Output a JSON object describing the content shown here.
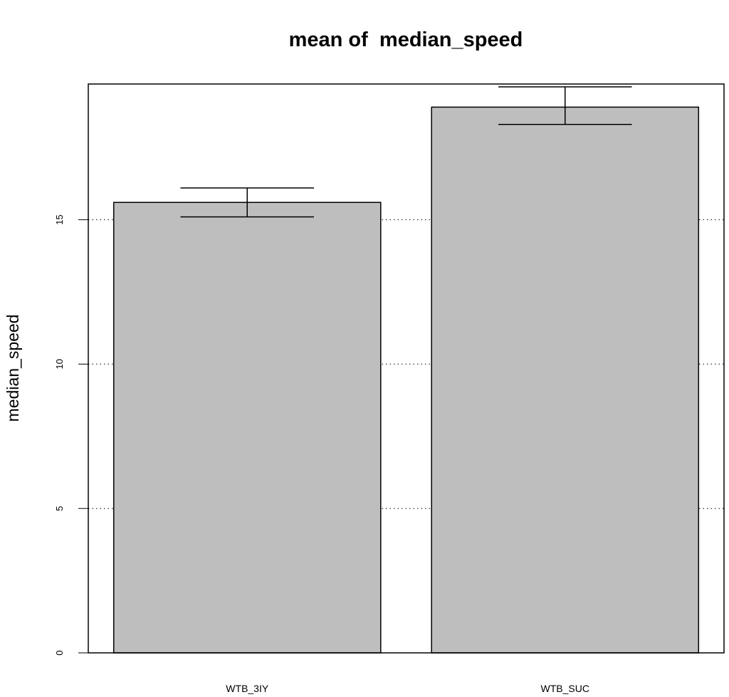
{
  "chart_data": {
    "type": "bar",
    "title": "mean of  median_speed",
    "xlabel": "",
    "ylabel": "median_speed",
    "categories": [
      "WTB_3IY",
      "WTB_SUC"
    ],
    "values": [
      15.6,
      18.9
    ],
    "error_bars": [
      {
        "low": 15.1,
        "high": 16.1
      },
      {
        "low": 18.3,
        "high": 19.6
      }
    ],
    "ylim": [
      0,
      19.7
    ],
    "yticks": [
      0,
      5,
      10,
      15
    ],
    "ytick_labels": [
      "0",
      "5",
      "10",
      "15"
    ],
    "grid": "horizontal dotted",
    "bar_color": "#bebebe",
    "edge_color": "#000000"
  }
}
